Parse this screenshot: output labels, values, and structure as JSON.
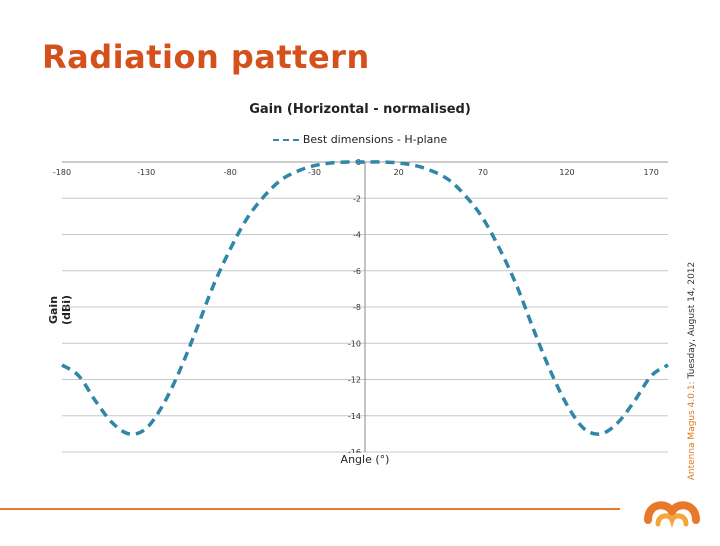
{
  "slide": {
    "title": "Radiation pattern"
  },
  "side_note": {
    "brand": "Antenna Magus 4.0.1:",
    "date": "Tuesday, August 14, 2012"
  },
  "colors": {
    "title": "#d4501c",
    "series": "#2f86a8",
    "footer": "#e8792b"
  },
  "chart_data": {
    "type": "line",
    "title": "Gain (Horizontal - normalised)",
    "xlabel": "Angle (°)",
    "ylabel": "Gain (dBi)",
    "xlim": [
      -180,
      180
    ],
    "ylim": [
      -16,
      0
    ],
    "x_ticks": [
      -180,
      -130,
      -80,
      -30,
      20,
      70,
      120,
      170
    ],
    "x_tick_labels": [
      "-180",
      "-130",
      "-80",
      "-30",
      "20",
      "70",
      "120",
      "170"
    ],
    "y_ticks": [
      0,
      -2,
      -4,
      -6,
      -8,
      -10,
      -12,
      -14,
      -16
    ],
    "y_tick_labels": [
      "0",
      "-2",
      "-4",
      "-6",
      "-8",
      "-10",
      "-12",
      "-14",
      "-16"
    ],
    "grid": "horizontal",
    "legend": "top",
    "series": [
      {
        "name": "Best dimensions - H-plane",
        "style": "dashed",
        "x": [
          -180,
          -170,
          -160,
          -150,
          -140,
          -130,
          -120,
          -110,
          -100,
          -90,
          -80,
          -70,
          -60,
          -50,
          -40,
          -30,
          -20,
          -10,
          0,
          10,
          20,
          30,
          40,
          50,
          60,
          70,
          80,
          90,
          100,
          110,
          120,
          130,
          140,
          150,
          160,
          170,
          180
        ],
        "y": [
          -11.2,
          -11.8,
          -13.2,
          -14.4,
          -15.0,
          -14.7,
          -13.4,
          -11.5,
          -9.2,
          -6.8,
          -4.8,
          -3.1,
          -1.9,
          -1.0,
          -0.5,
          -0.2,
          -0.05,
          0,
          0,
          0,
          -0.05,
          -0.2,
          -0.5,
          -1.0,
          -1.9,
          -3.1,
          -4.8,
          -6.8,
          -9.2,
          -11.5,
          -13.4,
          -14.7,
          -15.0,
          -14.4,
          -13.2,
          -11.8,
          -11.2
        ]
      }
    ]
  }
}
